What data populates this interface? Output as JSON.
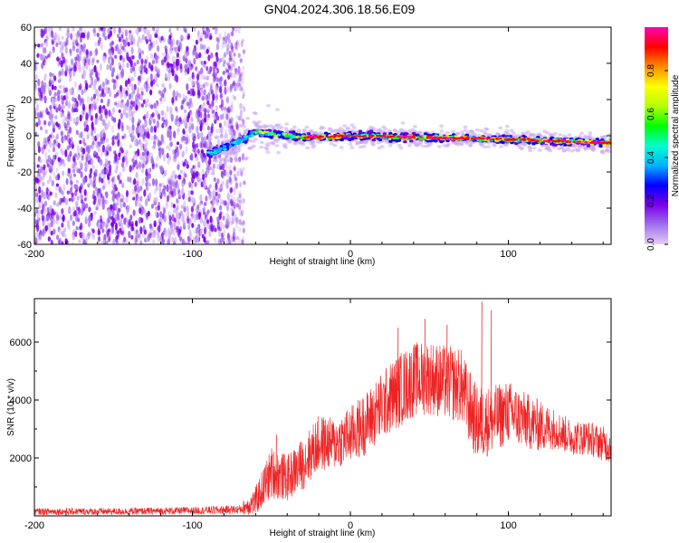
{
  "title": "GN04.2024.306.18.56.E09",
  "chart_data": [
    {
      "type": "heatmap",
      "xlabel": "Height of straight line (km)",
      "ylabel": "Frequency (Hz)",
      "xlim": [
        -200,
        165
      ],
      "ylim": [
        -60,
        60
      ],
      "x_ticks": [
        -200,
        -100,
        0,
        100
      ],
      "y_ticks": [
        -60,
        -40,
        -20,
        0,
        20,
        40,
        60
      ],
      "colorbar": {
        "label": "Normalized spectral amplitude",
        "range": [
          0,
          1
        ],
        "ticks": [
          "0.0",
          "0.2",
          "0.4",
          "0.6",
          "0.8"
        ],
        "colors": [
          "#e6ccf5",
          "#a070ee",
          "#7a00e8",
          "#0000ff",
          "#00b4ff",
          "#00ffcc",
          "#00ff00",
          "#b4ff00",
          "#ffff00",
          "#ff8c00",
          "#ff0000",
          "#ff00b4"
        ]
      },
      "noise_region": {
        "x": [
          -200,
          -67
        ],
        "y": [
          -60,
          60
        ],
        "amplitude": [
          0.02,
          0.15
        ]
      },
      "signal_track": {
        "start": {
          "x": -90,
          "y": -10
        },
        "points": [
          {
            "x": -90,
            "y": -10
          },
          {
            "x": -80,
            "y": -7
          },
          {
            "x": -70,
            "y": -3
          },
          {
            "x": -60,
            "y": 2
          },
          {
            "x": -50,
            "y": 1
          },
          {
            "x": -40,
            "y": 0
          },
          {
            "x": -30,
            "y": -1
          },
          {
            "x": 0,
            "y": 0
          },
          {
            "x": 50,
            "y": -1
          },
          {
            "x": 100,
            "y": -2
          },
          {
            "x": 130,
            "y": -3
          },
          {
            "x": 165,
            "y": -4
          }
        ],
        "peak_amplitude": 0.85
      }
    },
    {
      "type": "line",
      "xlabel": "Height of straight line (km)",
      "ylabel": "SNR (10 * v/v)",
      "xlim": [
        -200,
        165
      ],
      "ylim": [
        0,
        7500
      ],
      "x_ticks": [
        -200,
        -100,
        0,
        100
      ],
      "y_ticks": [
        2000,
        4000,
        6000
      ],
      "series": [
        {
          "color": "#ee2222",
          "envelope": [
            {
              "x": -200,
              "mean": 150,
              "spread": 120
            },
            {
              "x": -150,
              "mean": 150,
              "spread": 120
            },
            {
              "x": -100,
              "mean": 180,
              "spread": 130
            },
            {
              "x": -70,
              "mean": 220,
              "spread": 160
            },
            {
              "x": -60,
              "mean": 500,
              "spread": 500
            },
            {
              "x": -50,
              "mean": 1500,
              "spread": 900
            },
            {
              "x": -40,
              "mean": 1300,
              "spread": 800
            },
            {
              "x": -30,
              "mean": 1800,
              "spread": 900
            },
            {
              "x": -20,
              "mean": 2500,
              "spread": 1000
            },
            {
              "x": -10,
              "mean": 2500,
              "spread": 900
            },
            {
              "x": 0,
              "mean": 2800,
              "spread": 1000
            },
            {
              "x": 10,
              "mean": 3200,
              "spread": 1100
            },
            {
              "x": 20,
              "mean": 3800,
              "spread": 1200
            },
            {
              "x": 30,
              "mean": 4300,
              "spread": 1300
            },
            {
              "x": 40,
              "mean": 4700,
              "spread": 1300
            },
            {
              "x": 50,
              "mean": 4800,
              "spread": 1300
            },
            {
              "x": 60,
              "mean": 4600,
              "spread": 1300
            },
            {
              "x": 70,
              "mean": 4500,
              "spread": 1300
            },
            {
              "x": 75,
              "mean": 3800,
              "spread": 1300
            },
            {
              "x": 80,
              "mean": 3200,
              "spread": 1300
            },
            {
              "x": 90,
              "mean": 3300,
              "spread": 1200
            },
            {
              "x": 100,
              "mean": 3600,
              "spread": 1100
            },
            {
              "x": 110,
              "mean": 3300,
              "spread": 1000
            },
            {
              "x": 120,
              "mean": 3100,
              "spread": 900
            },
            {
              "x": 130,
              "mean": 3000,
              "spread": 700
            },
            {
              "x": 140,
              "mean": 2700,
              "spread": 600
            },
            {
              "x": 150,
              "mean": 2700,
              "spread": 600
            },
            {
              "x": 165,
              "mean": 2400,
              "spread": 600
            }
          ],
          "spikes": [
            {
              "x": 83,
              "y": 7400
            },
            {
              "x": 89,
              "y": 7100
            },
            {
              "x": 47,
              "y": 6800
            },
            {
              "x": 30,
              "y": 6500
            },
            {
              "x": 61,
              "y": 6600
            },
            {
              "x": -47,
              "y": 2800
            }
          ]
        }
      ]
    }
  ]
}
